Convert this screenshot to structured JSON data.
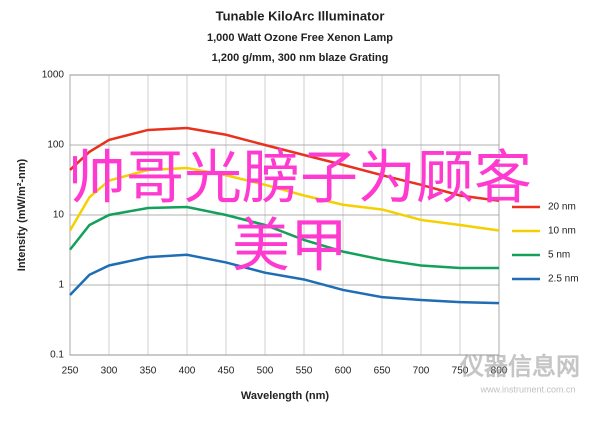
{
  "chart_data": {
    "type": "line",
    "title": "Tunable KiloArc Illuminator",
    "subtitle": [
      "1,000 Watt Ozone Free Xenon Lamp",
      "1,200 g/mm, 300 nm blaze Grating"
    ],
    "x_label": "Wavelength (nm)",
    "y_label": "Intensity (mW/m²-nm)",
    "x": [
      250,
      275,
      300,
      350,
      400,
      450,
      500,
      550,
      600,
      650,
      700,
      750,
      800
    ],
    "series": [
      {
        "name": "20 nm",
        "color": "#e8321e",
        "values": [
          44,
          80,
          118,
          164,
          175,
          140,
          100,
          72,
          52,
          37,
          27,
          19,
          16
        ]
      },
      {
        "name": "10 nm",
        "color": "#f5d000",
        "values": [
          6,
          18,
          31,
          44,
          47,
          37,
          27,
          19,
          14,
          12,
          8.5,
          7.2,
          6
        ]
      },
      {
        "name": "5 nm",
        "color": "#12a05a",
        "values": [
          3.2,
          7.2,
          10,
          12.6,
          13,
          10,
          7.2,
          4.4,
          3,
          2.3,
          1.9,
          1.75,
          1.75
        ]
      },
      {
        "name": "2.5 nm",
        "color": "#1f6db5",
        "values": [
          0.72,
          1.4,
          1.9,
          2.5,
          2.7,
          2.1,
          1.5,
          1.2,
          0.85,
          0.67,
          0.61,
          0.57,
          0.55
        ]
      }
    ],
    "xlim": [
      250,
      800
    ],
    "xticks": [
      250,
      300,
      350,
      400,
      450,
      500,
      550,
      600,
      650,
      700,
      750,
      800
    ],
    "ylim": [
      0.1,
      1000
    ],
    "yticks": [
      0.1,
      1,
      10,
      100,
      1000
    ],
    "log_y": true,
    "grid": true,
    "legend": "right"
  },
  "overlay": {
    "lines": [
      "帅哥光膀子为顾客",
      "美甲"
    ],
    "color": "#ff3ad0"
  },
  "watermark": {
    "name": "仪器信息网",
    "url": "www.instrument.com.cn"
  }
}
